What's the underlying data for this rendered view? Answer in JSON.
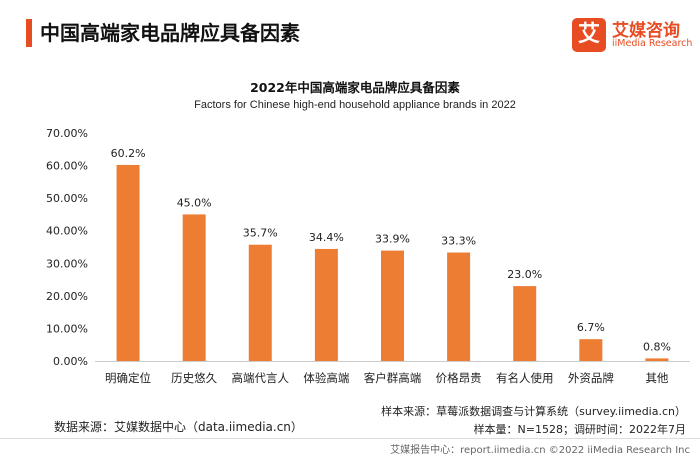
{
  "header": {
    "title": "中国高端家电品牌应具备因素",
    "logo_mark": "艾",
    "logo_name": "艾媒咨询",
    "logo_sub": "iiMedia Research"
  },
  "chart_data": {
    "type": "bar",
    "title": "2022年中国高端家电品牌应具备因素",
    "subtitle": "Factors for Chinese high-end household appliance brands in 2022",
    "categories": [
      "明确定位",
      "历史悠久",
      "高端代言人",
      "体验高端",
      "客户群高端",
      "价格昂贵",
      "有名人使用",
      "外资品牌",
      "其他"
    ],
    "values": [
      60.2,
      45.0,
      35.7,
      34.4,
      33.9,
      33.3,
      23.0,
      6.7,
      0.8
    ],
    "value_labels": [
      "60.2%",
      "45.0%",
      "35.7%",
      "34.4%",
      "33.9%",
      "33.3%",
      "23.0%",
      "6.7%",
      "0.8%"
    ],
    "y_ticks": [
      0,
      10,
      20,
      30,
      40,
      50,
      60,
      70
    ],
    "y_tick_labels": [
      "0.00%",
      "10.00%",
      "20.00%",
      "30.00%",
      "40.00%",
      "50.00%",
      "60.00%",
      "70.00%"
    ],
    "ylim": [
      0,
      70
    ],
    "grid": false,
    "bar_color": "#ee7d34"
  },
  "footer": {
    "source": "数据来源：艾媒数据中心（data.iimedia.cn）",
    "sample_source": "样本来源：草莓派数据调查与计算系统（survey.iimedia.cn）",
    "sample_size": "样本量：N=1528；调研时间：2022年7月",
    "copyright": "艾媒报告中心：report.iimedia.cn  ©2022  iiMedia Research  Inc"
  }
}
